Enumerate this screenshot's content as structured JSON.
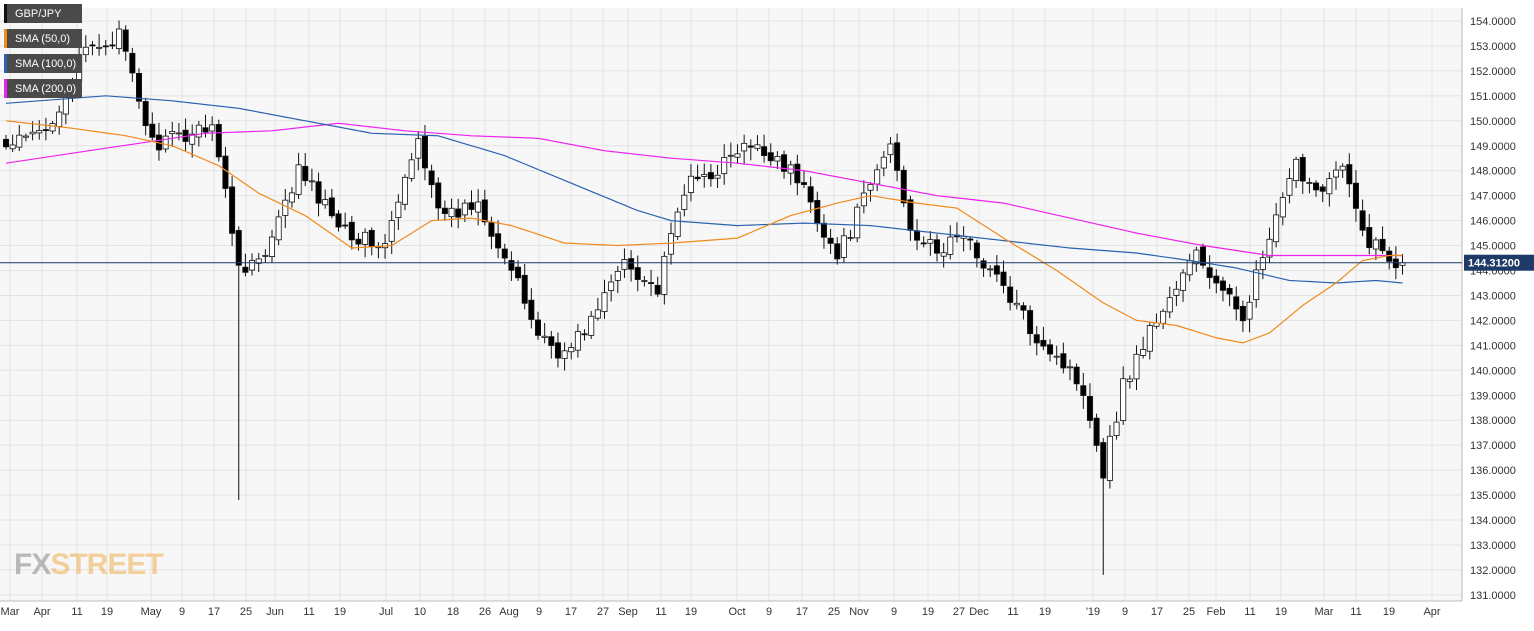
{
  "chart_data": {
    "type": "candlestick",
    "symbol": "GBP/JPY",
    "last_price_label": "144.31200",
    "last_price": 144.312,
    "ylim": [
      131.0,
      154.0
    ],
    "y_ticks": [
      "154.0000",
      "153.0000",
      "152.0000",
      "151.0000",
      "150.0000",
      "149.0000",
      "148.0000",
      "147.0000",
      "146.0000",
      "145.0000",
      "144.0000",
      "143.0000",
      "142.0000",
      "141.0000",
      "140.0000",
      "139.0000",
      "138.0000",
      "137.0000",
      "136.0000",
      "135.0000",
      "134.0000",
      "133.0000",
      "132.0000",
      "131.0000"
    ],
    "x_ticks": [
      "Mar",
      "Apr",
      "11",
      "19",
      "May",
      "9",
      "17",
      "25",
      "Jun",
      "11",
      "19",
      "Jul",
      "10",
      "18",
      "26",
      "Aug",
      "9",
      "17",
      "27",
      "Sep",
      "11",
      "19",
      "Oct",
      "9",
      "17",
      "25",
      "Nov",
      "9",
      "19",
      "27",
      "Dec",
      "11",
      "19",
      "'19",
      "9",
      "17",
      "25",
      "Feb",
      "11",
      "19",
      "Mar",
      "11",
      "19",
      "Apr"
    ],
    "grid": true,
    "legend_position": "top-left",
    "colors": {
      "background": "#f7f7f7",
      "grid": "#e3e3e3",
      "bull_fill": "#ffffff",
      "bear_fill": "#000000",
      "price_line": "#1f3a66",
      "price_box": "#1f3a66"
    },
    "series": [
      {
        "name": "GBP/JPY",
        "color": "#111111"
      },
      {
        "name": "SMA (50,0)",
        "color": "#f08a1c"
      },
      {
        "name": "SMA (100,0)",
        "color": "#2a62b0"
      },
      {
        "name": "SMA (200,0)",
        "color": "#ee22ee"
      }
    ],
    "close_anchors": [
      [
        0,
        148.9
      ],
      [
        6,
        149.6
      ],
      [
        12,
        152.8
      ],
      [
        17,
        153.4
      ],
      [
        22,
        149.1
      ],
      [
        26,
        149.3
      ],
      [
        31,
        150.0
      ],
      [
        35,
        144.2
      ],
      [
        39,
        144.5
      ],
      [
        44,
        148.0
      ],
      [
        48,
        146.6
      ],
      [
        53,
        145.3
      ],
      [
        57,
        145.0
      ],
      [
        62,
        149.2
      ],
      [
        66,
        146.0
      ],
      [
        71,
        146.8
      ],
      [
        75,
        144.6
      ],
      [
        80,
        141.5
      ],
      [
        84,
        140.6
      ],
      [
        89,
        142.4
      ],
      [
        93,
        144.5
      ],
      [
        98,
        143.2
      ],
      [
        102,
        147.3
      ],
      [
        107,
        148.1
      ],
      [
        111,
        148.9
      ],
      [
        116,
        148.6
      ],
      [
        120,
        147.3
      ],
      [
        125,
        144.5
      ],
      [
        129,
        146.8
      ],
      [
        133,
        149.1
      ],
      [
        136,
        145.8
      ],
      [
        140,
        144.6
      ],
      [
        143,
        145.5
      ],
      [
        147,
        144.4
      ],
      [
        150,
        143.3
      ],
      [
        154,
        141.7
      ],
      [
        158,
        140.6
      ],
      [
        162,
        139.3
      ],
      [
        165,
        136.0
      ],
      [
        168,
        139.4
      ],
      [
        172,
        141.6
      ],
      [
        176,
        143.3
      ],
      [
        179,
        144.7
      ],
      [
        183,
        143.0
      ],
      [
        186,
        142.3
      ],
      [
        190,
        145.2
      ],
      [
        194,
        148.2
      ],
      [
        197,
        147.3
      ],
      [
        201,
        148.1
      ],
      [
        204,
        145.5
      ],
      [
        208,
        144.5
      ],
      [
        210,
        144.2
      ]
    ],
    "sma50_anchors": [
      [
        0,
        150.0
      ],
      [
        10,
        149.7
      ],
      [
        18,
        149.4
      ],
      [
        25,
        149.0
      ],
      [
        32,
        148.2
      ],
      [
        38,
        147.1
      ],
      [
        45,
        146.2
      ],
      [
        52,
        144.9
      ],
      [
        58,
        145.0
      ],
      [
        64,
        146.0
      ],
      [
        70,
        146.1
      ],
      [
        76,
        145.8
      ],
      [
        84,
        145.1
      ],
      [
        92,
        145.0
      ],
      [
        100,
        145.1
      ],
      [
        110,
        145.3
      ],
      [
        118,
        146.2
      ],
      [
        125,
        146.7
      ],
      [
        130,
        147.0
      ],
      [
        137,
        146.7
      ],
      [
        143,
        146.5
      ],
      [
        150,
        145.3
      ],
      [
        158,
        144.0
      ],
      [
        165,
        142.7
      ],
      [
        170,
        142.0
      ],
      [
        176,
        141.8
      ],
      [
        182,
        141.3
      ],
      [
        186,
        141.1
      ],
      [
        190,
        141.5
      ],
      [
        195,
        142.6
      ],
      [
        200,
        143.5
      ],
      [
        204,
        144.4
      ],
      [
        208,
        144.6
      ],
      [
        210,
        144.6
      ]
    ],
    "sma100_anchors": [
      [
        0,
        150.7
      ],
      [
        15,
        151.0
      ],
      [
        25,
        150.8
      ],
      [
        35,
        150.5
      ],
      [
        45,
        150.0
      ],
      [
        55,
        149.5
      ],
      [
        65,
        149.4
      ],
      [
        75,
        148.6
      ],
      [
        85,
        147.5
      ],
      [
        95,
        146.4
      ],
      [
        100,
        146.0
      ],
      [
        110,
        145.8
      ],
      [
        120,
        145.9
      ],
      [
        130,
        145.8
      ],
      [
        140,
        145.5
      ],
      [
        150,
        145.2
      ],
      [
        160,
        144.9
      ],
      [
        170,
        144.7
      ],
      [
        178,
        144.4
      ],
      [
        185,
        144.1
      ],
      [
        193,
        143.6
      ],
      [
        200,
        143.5
      ],
      [
        206,
        143.6
      ],
      [
        210,
        143.5
      ]
    ],
    "sma200_anchors": [
      [
        0,
        148.3
      ],
      [
        15,
        148.9
      ],
      [
        30,
        149.5
      ],
      [
        40,
        149.6
      ],
      [
        50,
        149.9
      ],
      [
        60,
        149.6
      ],
      [
        70,
        149.4
      ],
      [
        80,
        149.3
      ],
      [
        90,
        148.8
      ],
      [
        100,
        148.5
      ],
      [
        110,
        148.3
      ],
      [
        120,
        148.0
      ],
      [
        130,
        147.5
      ],
      [
        140,
        147.0
      ],
      [
        150,
        146.7
      ],
      [
        160,
        146.1
      ],
      [
        170,
        145.5
      ],
      [
        180,
        145.0
      ],
      [
        190,
        144.6
      ],
      [
        200,
        144.6
      ],
      [
        210,
        144.6
      ]
    ],
    "wick_extremes": [
      {
        "index": 35,
        "low": 134.8
      },
      {
        "index": 165,
        "low": 131.8
      }
    ]
  },
  "watermark": {
    "fx": "FX",
    "street": "STREET"
  }
}
